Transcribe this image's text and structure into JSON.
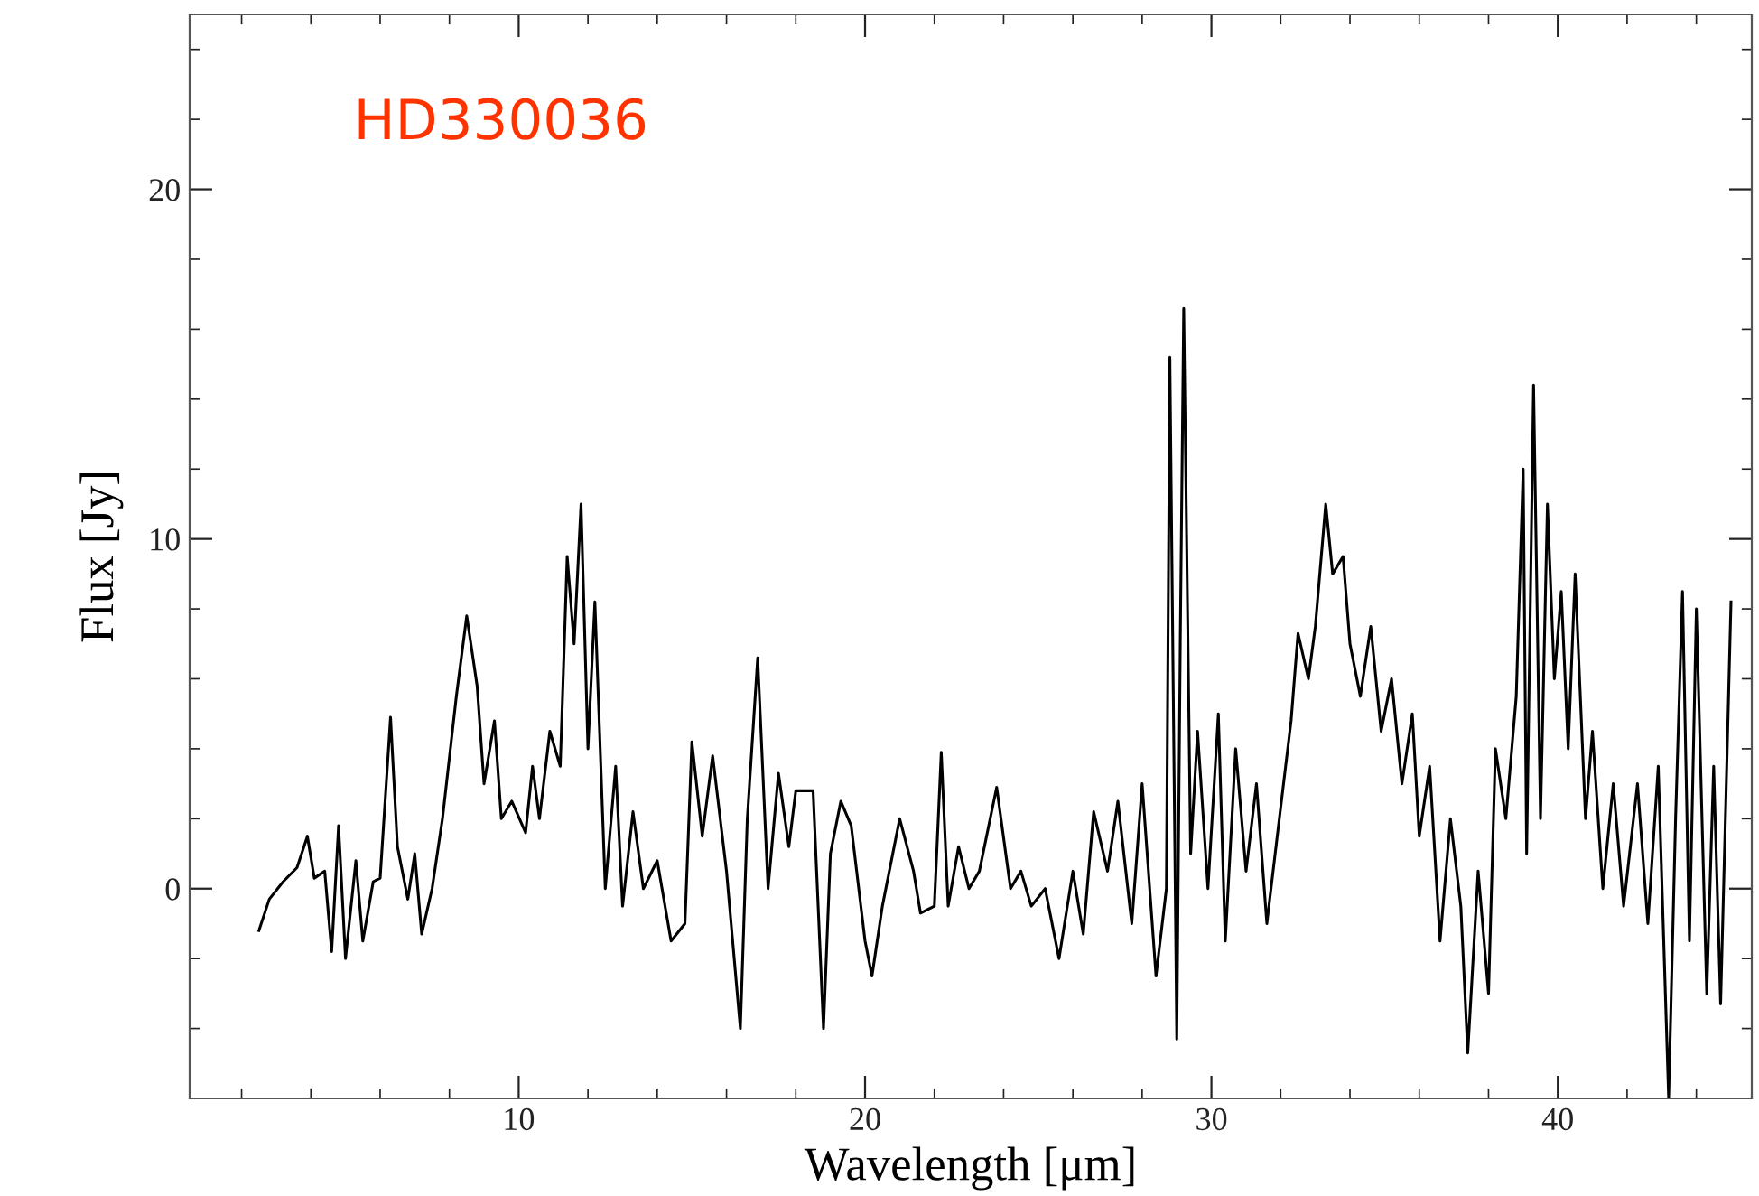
{
  "chart_data": {
    "type": "line",
    "xlabel": "Wavelength [μm]",
    "ylabel": "Flux [Jy]",
    "annotations": [
      "HD330036"
    ],
    "x": [
      2.5,
      2.8,
      3.2,
      3.6,
      3.9,
      4.1,
      4.4,
      4.6,
      4.8,
      5.0,
      5.3,
      5.5,
      5.8,
      6.0,
      6.3,
      6.5,
      6.8,
      7.0,
      7.2,
      7.5,
      7.8,
      8.2,
      8.5,
      8.8,
      9.0,
      9.3,
      9.5,
      9.8,
      10.2,
      10.4,
      10.6,
      10.9,
      11.2,
      11.4,
      11.6,
      11.8,
      12.0,
      12.2,
      12.5,
      12.8,
      13.0,
      13.3,
      13.6,
      14.0,
      14.4,
      14.8,
      15.0,
      15.3,
      15.6,
      16.0,
      16.4,
      16.6,
      16.9,
      17.2,
      17.5,
      17.8,
      18.0,
      18.5,
      18.8,
      19.0,
      19.3,
      19.6,
      20.0,
      20.2,
      20.5,
      21.0,
      21.4,
      21.6,
      22.0,
      22.2,
      22.4,
      22.7,
      23.0,
      23.3,
      23.8,
      24.2,
      24.5,
      24.8,
      25.2,
      25.6,
      26.0,
      26.3,
      26.6,
      27.0,
      27.3,
      27.7,
      28.0,
      28.4,
      28.7,
      28.8,
      29.0,
      29.1,
      29.2,
      29.4,
      29.6,
      29.9,
      30.2,
      30.4,
      30.7,
      31.0,
      31.3,
      31.6,
      31.9,
      32.3,
      32.5,
      32.8,
      33.0,
      33.3,
      33.5,
      33.8,
      34.0,
      34.3,
      34.6,
      34.9,
      35.2,
      35.5,
      35.8,
      36.0,
      36.3,
      36.6,
      36.9,
      37.2,
      37.4,
      37.7,
      38.0,
      38.2,
      38.5,
      38.8,
      39.0,
      39.1,
      39.3,
      39.5,
      39.7,
      39.9,
      40.1,
      40.3,
      40.5,
      40.8,
      41.0,
      41.3,
      41.6,
      41.9,
      42.3,
      42.6,
      42.9,
      43.2,
      43.4,
      43.6,
      43.8,
      44.0,
      44.3,
      44.5,
      44.7,
      45.0
    ],
    "series": [
      {
        "color": "#000000",
        "values": [
          -1.2,
          -0.3,
          0.2,
          0.6,
          1.5,
          0.3,
          0.5,
          -1.8,
          1.8,
          -2.0,
          0.8,
          -1.5,
          0.2,
          0.3,
          4.9,
          1.2,
          -0.3,
          1.0,
          -1.3,
          0.0,
          2.0,
          5.5,
          7.8,
          5.8,
          3.0,
          4.8,
          2.0,
          2.5,
          1.6,
          3.5,
          2.0,
          4.5,
          3.5,
          9.5,
          7.0,
          11.0,
          4.0,
          8.2,
          0.0,
          3.5,
          -0.5,
          2.2,
          0.0,
          0.8,
          -1.5,
          -1.0,
          4.2,
          1.5,
          3.8,
          0.5,
          -4.0,
          2.0,
          6.6,
          0.0,
          3.3,
          1.2,
          2.8,
          2.8,
          -4.0,
          1.0,
          2.5,
          1.8,
          -1.5,
          -2.5,
          -0.5,
          2.0,
          0.5,
          -0.7,
          -0.5,
          3.9,
          -0.5,
          1.2,
          0.0,
          0.5,
          2.9,
          0.0,
          0.5,
          -0.5,
          0.0,
          -2.0,
          0.5,
          -1.3,
          2.2,
          0.5,
          2.5,
          -1.0,
          3.0,
          -2.5,
          0.0,
          15.2,
          -4.3,
          7.0,
          16.6,
          1.0,
          4.5,
          0.0,
          5.0,
          -1.5,
          4.0,
          0.5,
          3.0,
          -1.0,
          1.5,
          4.8,
          7.3,
          6.0,
          7.5,
          11.0,
          9.0,
          9.5,
          7.0,
          5.5,
          7.5,
          4.5,
          6.0,
          3.0,
          5.0,
          1.5,
          3.5,
          -1.5,
          2.0,
          -0.5,
          -4.7,
          0.5,
          -3.0,
          4.0,
          2.0,
          5.5,
          12.0,
          1.0,
          14.4,
          2.0,
          11.0,
          6.0,
          8.5,
          4.0,
          9.0,
          2.0,
          4.5,
          0.0,
          3.0,
          -0.5,
          3.0,
          -1.0,
          3.5,
          -6.0,
          2.0,
          8.5,
          -1.5,
          8.0,
          -3.0,
          3.5,
          -3.3,
          8.2
        ]
      }
    ],
    "xlim": [
      0.5,
      45.6
    ],
    "ylim": [
      -6,
      25
    ],
    "xticks": [
      {
        "value": 2,
        "label": null
      },
      {
        "value": 4,
        "label": null
      },
      {
        "value": 6,
        "label": null
      },
      {
        "value": 8,
        "label": null
      },
      10,
      {
        "value": 12,
        "label": null
      },
      {
        "value": 14,
        "label": null
      },
      {
        "value": 16,
        "label": null
      },
      {
        "value": 18,
        "label": null
      },
      20,
      {
        "value": 22,
        "label": null
      },
      {
        "value": 24,
        "label": null
      },
      {
        "value": 26,
        "label": null
      },
      {
        "value": 28,
        "label": null
      },
      30,
      {
        "value": 32,
        "label": null
      },
      {
        "value": 34,
        "label": null
      },
      {
        "value": 36,
        "label": null
      },
      {
        "value": 38,
        "label": null
      },
      40,
      {
        "value": 42,
        "label": null
      },
      {
        "value": 44,
        "label": null
      }
    ],
    "yticks": [
      {
        "value": -4,
        "label": null
      },
      {
        "value": -2,
        "label": null
      },
      0,
      {
        "value": 2,
        "label": null
      },
      {
        "value": 4,
        "label": null
      },
      {
        "value": 6,
        "label": null
      },
      {
        "value": 8,
        "label": null
      },
      10,
      {
        "value": 12,
        "label": null
      },
      {
        "value": 14,
        "label": null
      },
      {
        "value": 16,
        "label": null
      },
      {
        "value": 18,
        "label": null
      },
      20,
      {
        "value": 22,
        "label": null
      },
      {
        "value": 24,
        "label": null
      }
    ],
    "grid": false,
    "legend": false,
    "marker": "none",
    "line_style": "solid"
  }
}
